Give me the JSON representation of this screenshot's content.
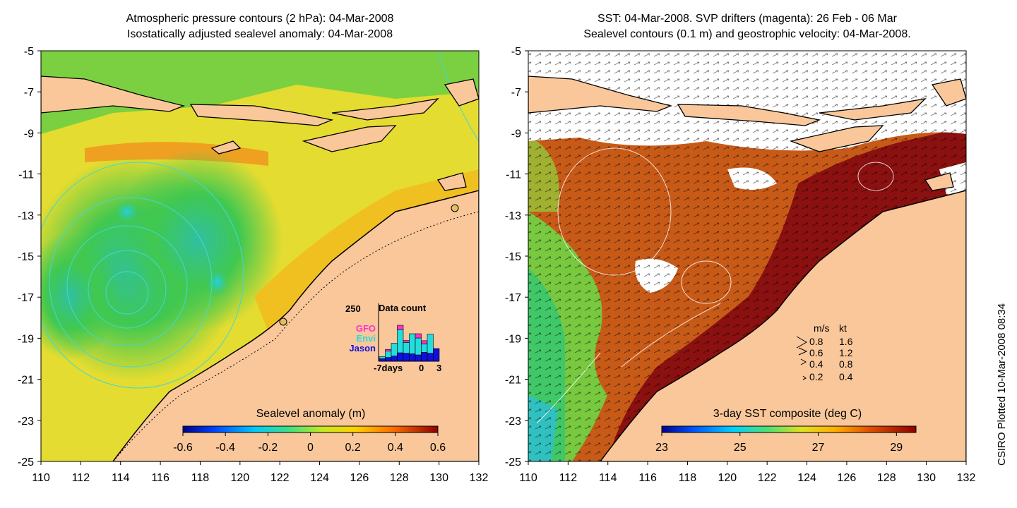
{
  "left_panel": {
    "title_line1": "Atmospheric pressure contours (2 hPa): 04-Mar-2008",
    "title_line2": "Isostatically adjusted sealevel anomaly: 04-Mar-2008",
    "colorbar_title": "Sealevel anomaly (m)",
    "colorbar_ticks": [
      "-0.6",
      "-0.4",
      "-0.2",
      "0",
      "0.2",
      "0.4",
      "0.6"
    ],
    "colorbar_range": [
      -0.6,
      0.6
    ],
    "histogram": {
      "y_label": "250",
      "title": "Data count",
      "x_tick_left": "-7days",
      "x_tick_mid": "0",
      "x_tick_right": "3",
      "legend": [
        {
          "name": "GFO",
          "color": "#ff33cc"
        },
        {
          "name": "Envi",
          "color": "#22dddd"
        },
        {
          "name": "Jason",
          "color": "#1010dd"
        }
      ],
      "days": [
        -7,
        -6,
        -5,
        -4,
        -3,
        -2,
        -1,
        0,
        1,
        2
      ],
      "jason": [
        12,
        18,
        25,
        40,
        38,
        35,
        30,
        42,
        38,
        60
      ],
      "envi": [
        10,
        30,
        60,
        110,
        50,
        95,
        80,
        40,
        90,
        0
      ],
      "gfo": [
        0,
        8,
        0,
        20,
        10,
        0,
        20,
        15,
        0,
        0
      ]
    }
  },
  "right_panel": {
    "title_line1": "SST: 04-Mar-2008. SVP drifters (magenta): 26 Feb - 06 Mar",
    "title_line2": "Sealevel contours (0.1 m) and geostrophic velocity: 04-Mar-2008.",
    "colorbar_title": "3-day SST composite (deg C)",
    "colorbar_ticks": [
      "23",
      "25",
      "27",
      "29"
    ],
    "colorbar_range": [
      23,
      29.5
    ],
    "velocity_legend": {
      "header_ms": "m/s",
      "header_kt": "kt",
      "rows": [
        {
          "ms": "0.8",
          "kt": "1.6"
        },
        {
          "ms": "0.6",
          "kt": "1.2"
        },
        {
          "ms": "0.4",
          "kt": "0.8"
        },
        {
          "ms": "0.2",
          "kt": "0.4"
        }
      ]
    }
  },
  "axes": {
    "lon_ticks": [
      "110",
      "112",
      "114",
      "116",
      "118",
      "120",
      "122",
      "124",
      "126",
      "128",
      "130",
      "132"
    ],
    "lat_ticks": [
      "-5",
      "-7",
      "-9",
      "-11",
      "-13",
      "-15",
      "-17",
      "-19",
      "-21",
      "-23",
      "-25"
    ],
    "lon_range": [
      110,
      132
    ],
    "lat_range": [
      -25,
      -5
    ]
  },
  "credit": "CSIRO Plotted 10-Mar-2008 08:34",
  "colors": {
    "land": "#f9c79a",
    "ocean_green": "#4cc84c",
    "ocean_yellow": "#e8e020",
    "sst_dark_red": "#8b1010",
    "contour_cyan": "#40d8d8"
  }
}
